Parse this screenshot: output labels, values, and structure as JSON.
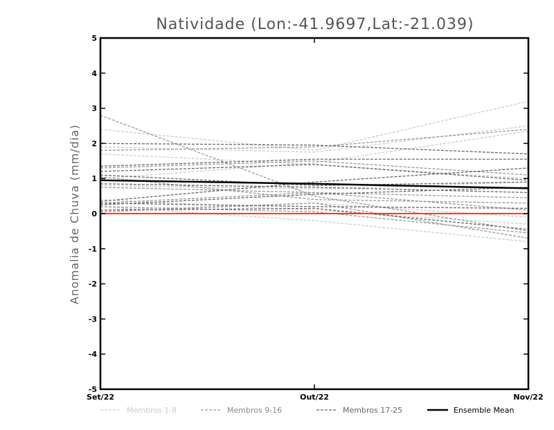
{
  "chart_data": {
    "type": "line",
    "title": "Natividade (Lon:-41.9697,Lat:-21.039)",
    "xlabel": "",
    "ylabel": "Anomalia de Chuva (mm/dia)",
    "categories": [
      "Set/22",
      "Out/22",
      "Nov/22"
    ],
    "ylim": [
      -5,
      5
    ],
    "yticks": [
      -5,
      -4,
      -3,
      -2,
      -1,
      0,
      1,
      2,
      3,
      4,
      5
    ],
    "grid": false,
    "legend_position": "bottom",
    "zero_line_color": "#e8403a",
    "groups": [
      {
        "label": "Membros 1-8",
        "color": "#cccccc",
        "series": [
          {
            "values": [
              2.4,
              1.8,
              3.2
            ]
          },
          {
            "values": [
              1.9,
              1.75,
              2.5
            ]
          },
          {
            "values": [
              1.7,
              1.4,
              1.0
            ]
          },
          {
            "values": [
              0.8,
              0.7,
              0.9
            ]
          },
          {
            "values": [
              0.4,
              0.1,
              -0.3
            ]
          },
          {
            "values": [
              0.2,
              -0.2,
              -0.8
            ]
          },
          {
            "values": [
              0.1,
              0.3,
              -0.1
            ]
          },
          {
            "values": [
              1.0,
              1.45,
              2.35
            ]
          }
        ]
      },
      {
        "label": "Membros 9-16",
        "color": "#999999",
        "series": [
          {
            "values": [
              2.8,
              0.5,
              -0.5
            ]
          },
          {
            "values": [
              1.8,
              1.9,
              2.4
            ]
          },
          {
            "values": [
              1.3,
              1.5,
              1.1
            ]
          },
          {
            "values": [
              1.05,
              0.4,
              0.3
            ]
          },
          {
            "values": [
              0.75,
              0.6,
              0.45
            ]
          },
          {
            "values": [
              0.3,
              0.6,
              0.1
            ]
          },
          {
            "values": [
              0.2,
              0.05,
              -0.55
            ]
          },
          {
            "values": [
              0.05,
              0.3,
              -0.7
            ]
          }
        ]
      },
      {
        "label": "Membros 17-25",
        "color": "#666666",
        "series": [
          {
            "values": [
              2.0,
              1.95,
              1.7
            ]
          },
          {
            "values": [
              1.35,
              1.55,
              1.55
            ]
          },
          {
            "values": [
              1.2,
              1.4,
              0.95
            ]
          },
          {
            "values": [
              1.1,
              0.8,
              0.9
            ]
          },
          {
            "values": [
              0.85,
              0.75,
              0.6
            ]
          },
          {
            "values": [
              0.35,
              0.9,
              1.3
            ]
          },
          {
            "values": [
              0.3,
              0.2,
              0.15
            ]
          },
          {
            "values": [
              0.25,
              0.55,
              0.75
            ]
          },
          {
            "values": [
              0.1,
              0.15,
              -0.45
            ]
          }
        ]
      }
    ],
    "ensemble_mean": {
      "label": "Ensemble Mean",
      "color": "#000000",
      "values": [
        0.95,
        0.85,
        0.72
      ]
    }
  }
}
